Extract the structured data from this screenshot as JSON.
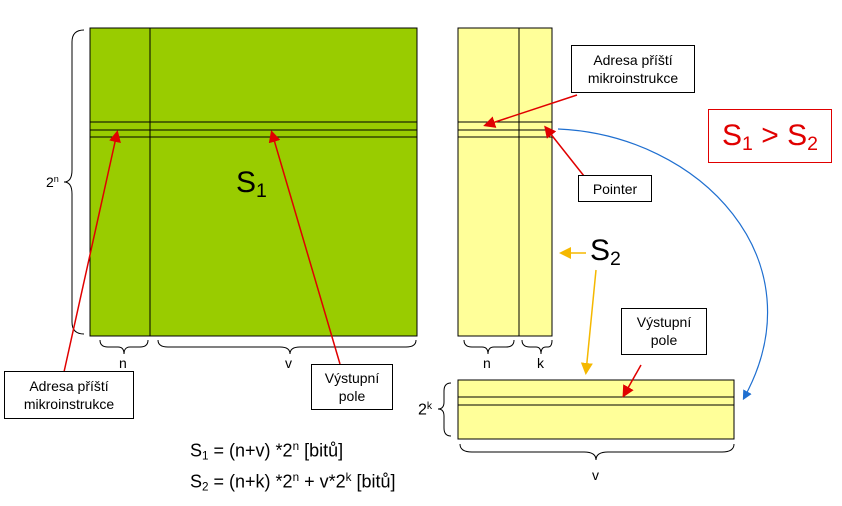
{
  "diagram": {
    "s1_label": "S",
    "s1_sub": "1",
    "s2_label": "S",
    "s2_sub": "2",
    "left_height_base": "2",
    "left_height_exp": "n",
    "left_n": "n",
    "left_v": "v",
    "right_n": "n",
    "right_k": "k",
    "bottom_height_base": "2",
    "bottom_height_exp": "k",
    "bottom_v": "v",
    "callout_addr_right_line1": "Adresa příští",
    "callout_addr_right_line2": "mikroinstrukce",
    "callout_pointer": "Pointer",
    "callout_output_right_line1": "Výstupní",
    "callout_output_right_line2": "pole",
    "callout_addr_left_line1": "Adresa příští",
    "callout_addr_left_line2": "mikroinstrukce",
    "callout_output_left_line1": "Výstupní",
    "callout_output_left_line2": "pole",
    "compare_a": "S",
    "compare_a_sub": "1",
    "compare_op": " > ",
    "compare_b": "S",
    "compare_b_sub": "2",
    "formula1_s": "S",
    "formula1_sub": "1",
    "formula1_a": " = (n+v) *2",
    "formula1_exp": "n",
    "formula1_b": " [bitů]",
    "formula2_s": "S",
    "formula2_sub": "2",
    "formula2_a": " = (n+k) *2",
    "formula2_exp": "n",
    "formula2_b": " + v*2",
    "formula2_exp2": "k",
    "formula2_c": " [bitů]"
  },
  "colors": {
    "green_fill": "#99cc00",
    "yellow_fill": "#ffff99",
    "red_arrow": "#e00000",
    "orange_arrow": "#f5b800",
    "blue_arrow": "#1f6fd0"
  }
}
